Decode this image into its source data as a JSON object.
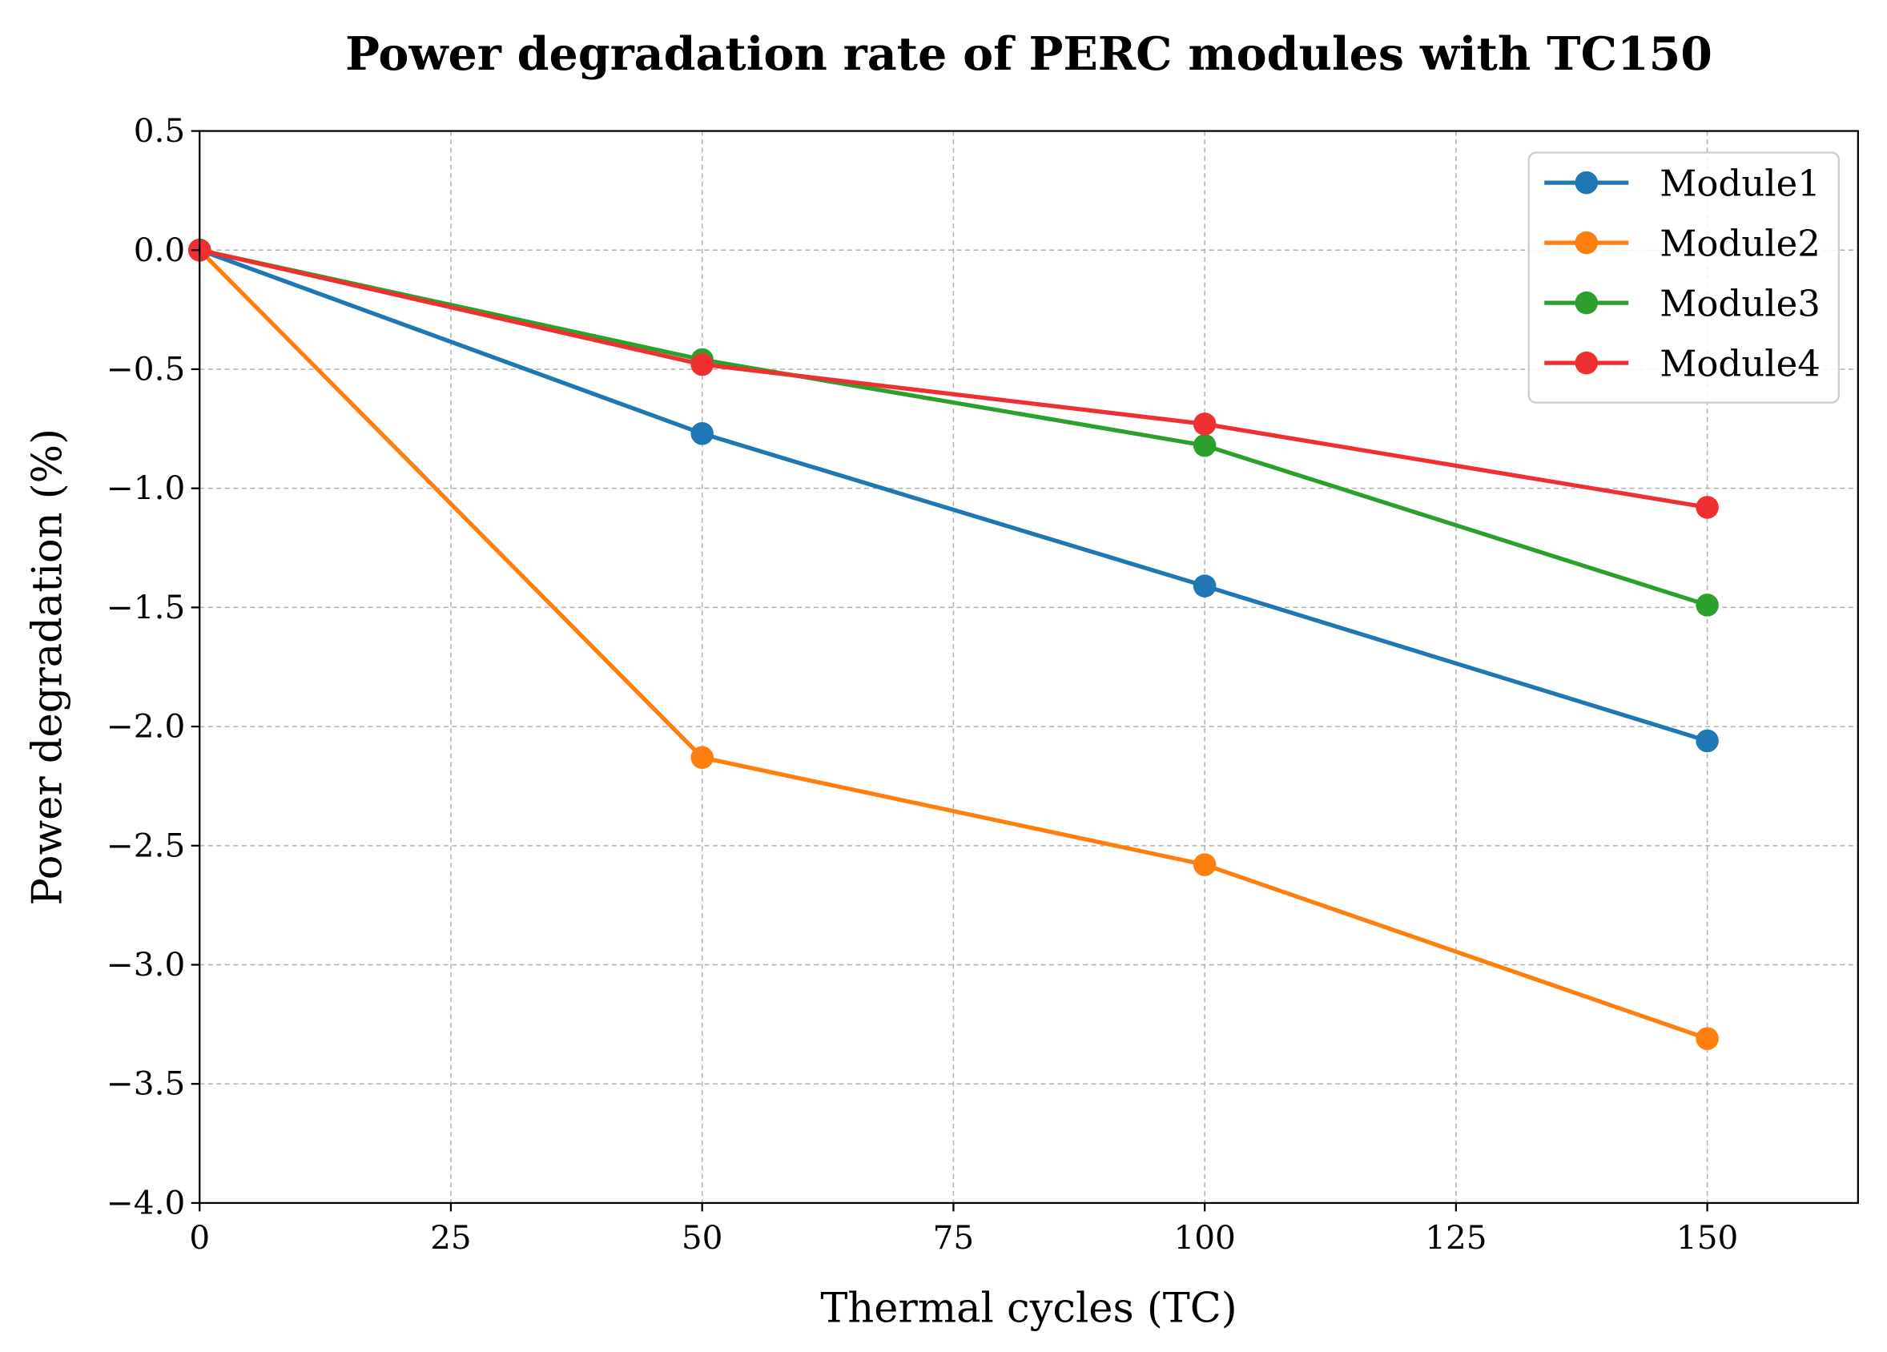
{
  "chart_data": {
    "type": "line",
    "title": "Power degradation rate of PERC modules with TC150",
    "xlabel": "Thermal cycles (TC)",
    "ylabel": "Power degradation (%)",
    "xlim": [
      0,
      165
    ],
    "ylim": [
      -4.0,
      0.5
    ],
    "xticks": [
      0,
      25,
      50,
      75,
      100,
      125,
      150
    ],
    "xtick_labels": [
      "0",
      "25",
      "50",
      "75",
      "100",
      "125",
      "150"
    ],
    "yticks": [
      0.5,
      0.0,
      -0.5,
      -1.0,
      -1.5,
      -2.0,
      -2.5,
      -3.0,
      -3.5,
      -4.0
    ],
    "ytick_labels": [
      "0.5",
      "0.0",
      "−0.5",
      "−1.0",
      "−1.5",
      "−2.0",
      "−2.5",
      "−3.0",
      "−3.5",
      "−4.0"
    ],
    "grid": true,
    "legend_position": "top-right",
    "x": [
      0,
      50,
      100,
      150
    ],
    "series": [
      {
        "name": "Module1",
        "color": "#1f77b4",
        "values": [
          0,
          -0.77,
          -1.41,
          -2.06
        ]
      },
      {
        "name": "Module2",
        "color": "#ff7f0e",
        "values": [
          0,
          -2.13,
          -2.58,
          -3.31
        ]
      },
      {
        "name": "Module3",
        "color": "#2ca02c",
        "values": [
          0,
          -0.46,
          -0.82,
          -1.49
        ]
      },
      {
        "name": "Module4",
        "color": "#f03030",
        "values": [
          0,
          -0.48,
          -0.73,
          -1.08
        ]
      }
    ]
  }
}
